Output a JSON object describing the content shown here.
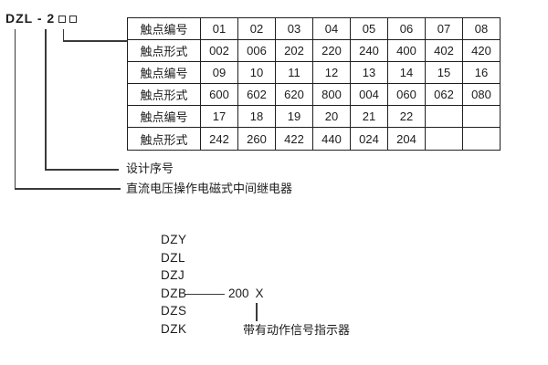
{
  "model": {
    "code": "DZL - 2"
  },
  "table": {
    "rows": [
      {
        "label": "触点编号",
        "values": [
          "01",
          "02",
          "03",
          "04",
          "05",
          "06",
          "07",
          "08"
        ]
      },
      {
        "label": "触点形式",
        "values": [
          "002",
          "006",
          "202",
          "220",
          "240",
          "400",
          "402",
          "420"
        ]
      },
      {
        "label": "触点编号",
        "values": [
          "09",
          "10",
          "11",
          "12",
          "13",
          "14",
          "15",
          "16"
        ]
      },
      {
        "label": "触点形式",
        "values": [
          "600",
          "602",
          "620",
          "800",
          "004",
          "060",
          "062",
          "080"
        ]
      },
      {
        "label": "触点编号",
        "values": [
          "17",
          "18",
          "19",
          "20",
          "21",
          "22",
          "",
          ""
        ]
      },
      {
        "label": "触点形式",
        "values": [
          "242",
          "260",
          "422",
          "440",
          "024",
          "204",
          "",
          ""
        ]
      }
    ]
  },
  "callouts": {
    "design_serial": "设计序号",
    "relay_description": "直流电压操作电磁式中间继电器"
  },
  "series_list": {
    "items": [
      "DZY",
      "DZL",
      "DZJ",
      "DZB",
      "DZS",
      "DZK"
    ],
    "dzb_number": "200",
    "dzb_variant": "X",
    "indicator_note": "带有动作信号指示器"
  },
  "colors": {
    "ink": "#1c1c1c",
    "line": "#3a3a3a",
    "background": "#ffffff"
  }
}
